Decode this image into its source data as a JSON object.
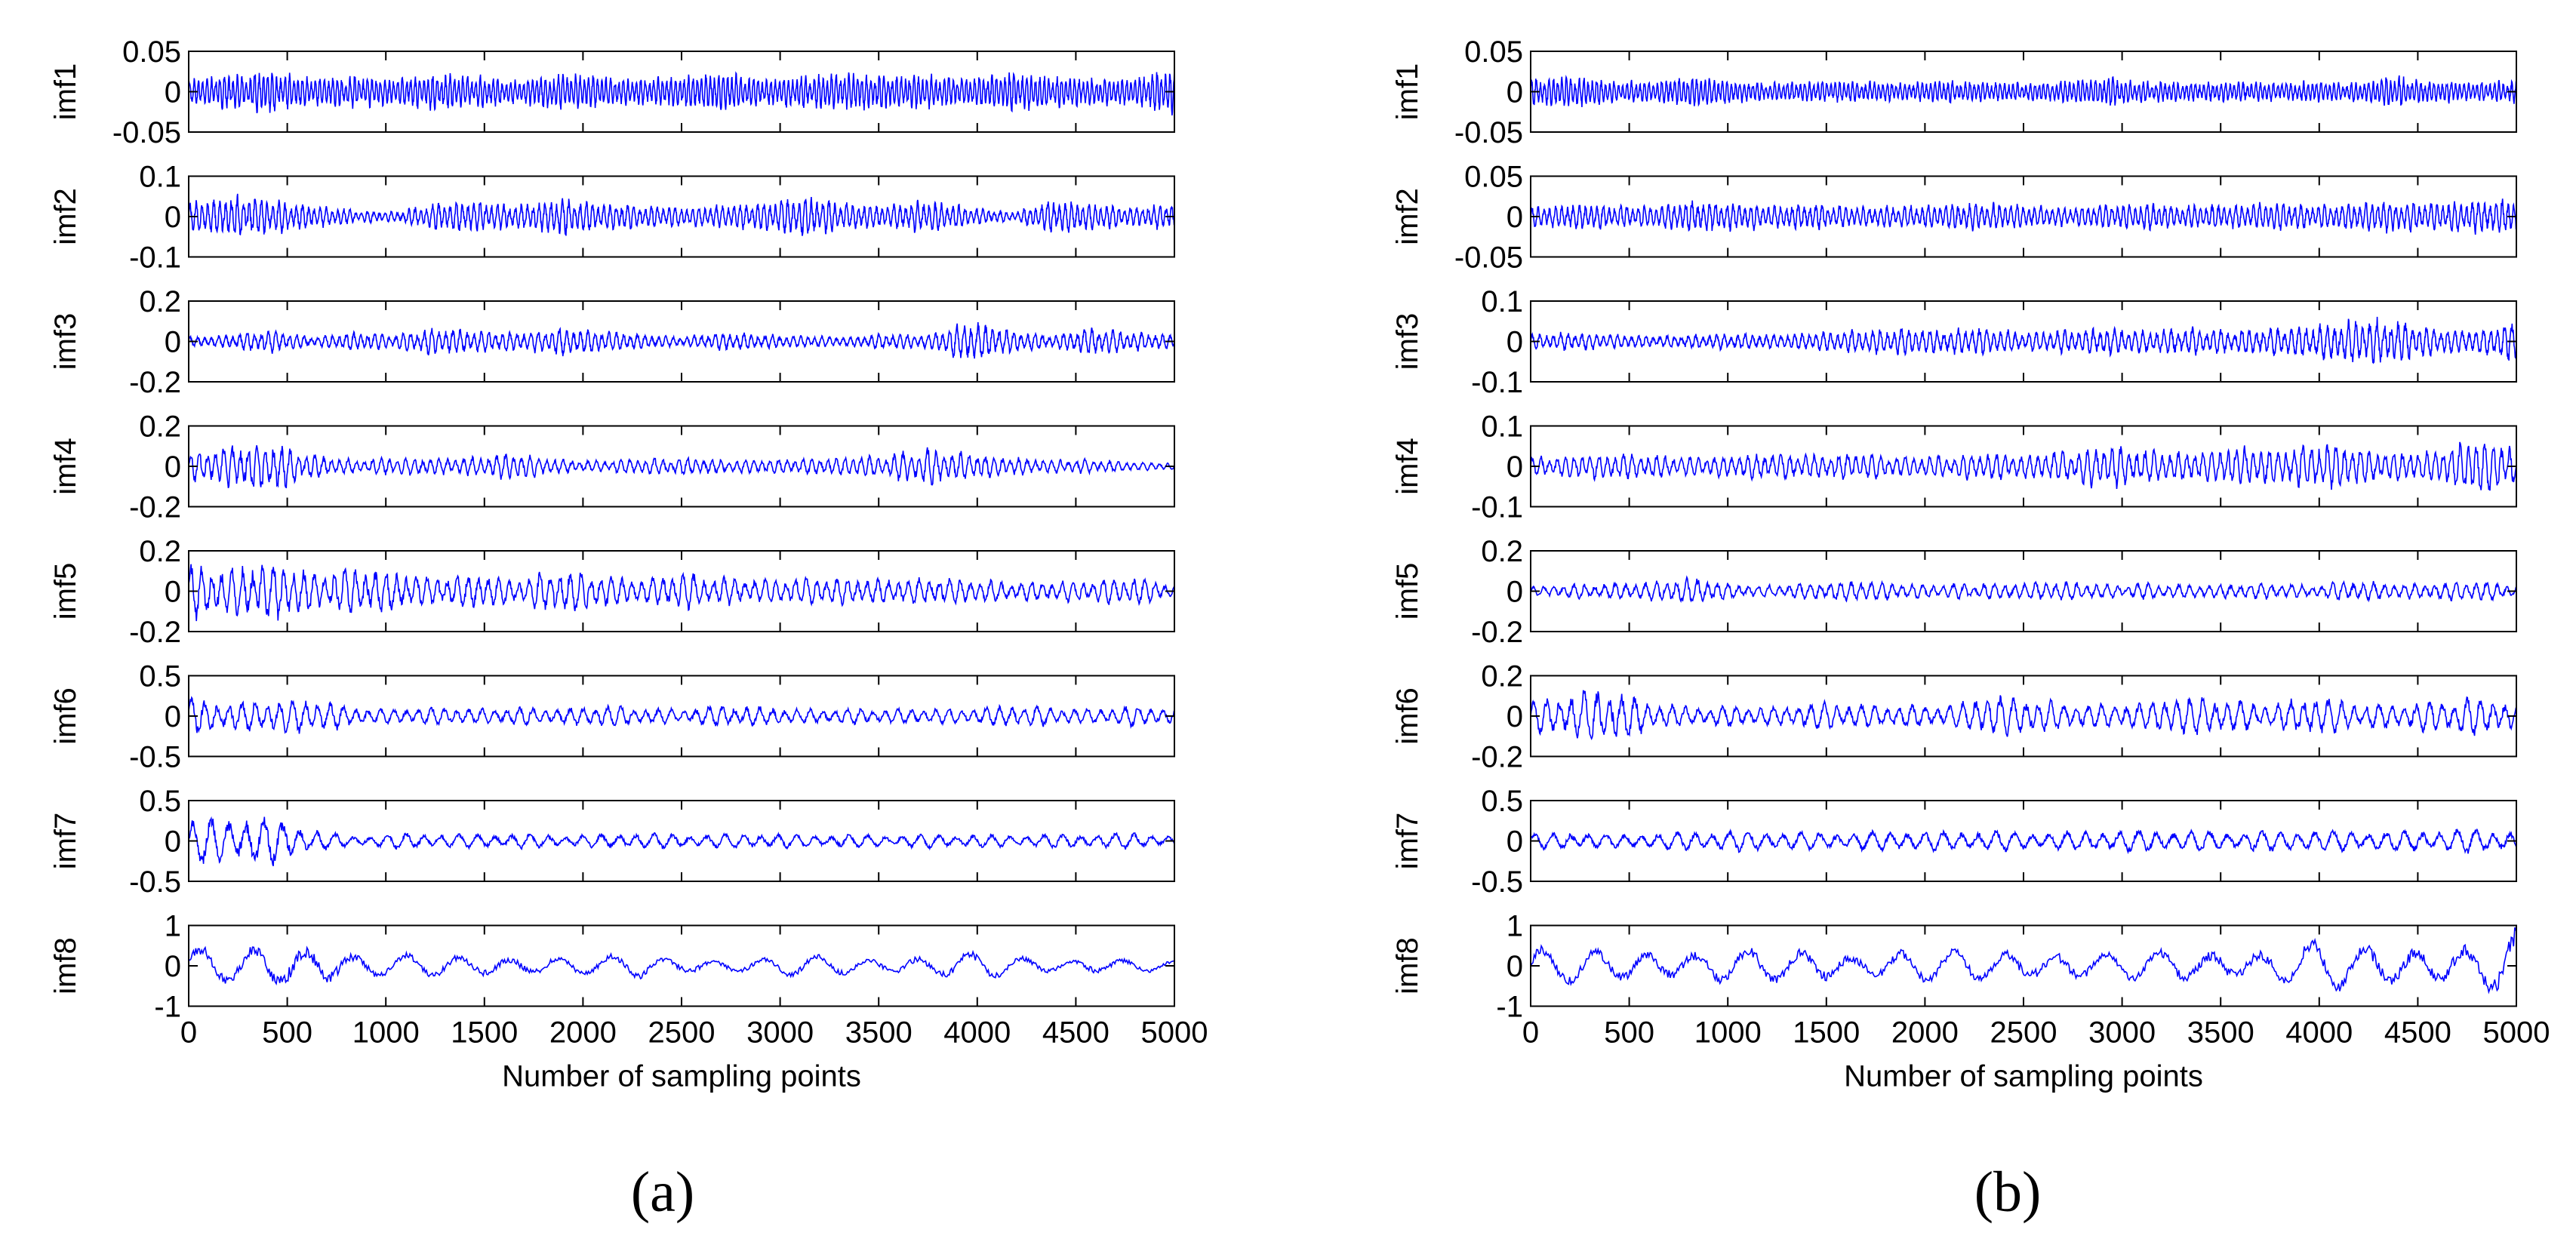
{
  "figure": {
    "panel_labels": [
      "(a)",
      "(b)"
    ]
  },
  "chart_data": [
    {
      "type": "line",
      "panel": "(a)",
      "xlabel": "Number of sampling points",
      "xlim": [
        0,
        5000
      ],
      "xticks": [
        0,
        500,
        1000,
        1500,
        2000,
        2500,
        3000,
        3500,
        4000,
        4500,
        5000
      ],
      "line_color": "#0000ff",
      "series": [
        {
          "name": "imf1",
          "ylim": [
            -0.05,
            0.05
          ],
          "yticks": [
            "0.05",
            "0",
            "-0.05"
          ],
          "amplitude": 0.025,
          "period": 22,
          "envelope": [
            0.55,
            0.8,
            0.9,
            0.6,
            0.7,
            0.6,
            0.8,
            0.7,
            0.5,
            0.8,
            0.7,
            0.55,
            0.7,
            0.85,
            0.6,
            0.7,
            0.8,
            0.75,
            0.7,
            0.6,
            0.85,
            0.7,
            0.6,
            0.55,
            1.1
          ]
        },
        {
          "name": "imf2",
          "ylim": [
            -0.1,
            0.1
          ],
          "yticks": [
            "0.1",
            "0",
            "-0.1"
          ],
          "amplitude": 0.05,
          "period": 30,
          "envelope": [
            0.6,
            0.9,
            0.8,
            0.5,
            0.3,
            0.2,
            0.6,
            0.7,
            0.5,
            0.8,
            0.6,
            0.5,
            0.4,
            0.5,
            0.6,
            0.9,
            0.6,
            0.5,
            0.7,
            0.4,
            0.2,
            0.7,
            0.6,
            0.4,
            0.6
          ]
        },
        {
          "name": "imf3",
          "ylim": [
            -0.2,
            0.2
          ],
          "yticks": [
            "0.2",
            "0",
            "-0.2"
          ],
          "amplitude": 0.1,
          "period": 36,
          "envelope": [
            0.2,
            0.3,
            0.5,
            0.2,
            0.4,
            0.3,
            0.6,
            0.5,
            0.4,
            0.6,
            0.5,
            0.3,
            0.2,
            0.4,
            0.3,
            0.25,
            0.2,
            0.35,
            0.3,
            0.9,
            0.5,
            0.3,
            0.6,
            0.4,
            0.3
          ]
        },
        {
          "name": "imf4",
          "ylim": [
            -0.2,
            0.2
          ],
          "yticks": [
            "0.2",
            "0",
            "-0.2"
          ],
          "amplitude": 0.1,
          "period": 42,
          "envelope": [
            0.6,
            0.9,
            1.1,
            0.5,
            0.3,
            0.4,
            0.35,
            0.4,
            0.6,
            0.3,
            0.25,
            0.35,
            0.4,
            0.3,
            0.3,
            0.35,
            0.4,
            0.5,
            0.8,
            0.6,
            0.4,
            0.3,
            0.3,
            0.2,
            0.15
          ]
        },
        {
          "name": "imf5",
          "ylim": [
            -0.2,
            0.2
          ],
          "yticks": [
            "0.2",
            "0",
            "-0.2"
          ],
          "amplitude": 0.1,
          "period": 52,
          "envelope": [
            1.2,
            1.0,
            1.4,
            0.8,
            1.0,
            0.9,
            0.6,
            0.8,
            0.5,
            1.0,
            0.7,
            0.5,
            0.8,
            0.6,
            0.5,
            0.6,
            0.55,
            0.5,
            0.6,
            0.5,
            0.4,
            0.45,
            0.5,
            0.6,
            0.3
          ]
        },
        {
          "name": "imf6",
          "ylim": [
            -0.5,
            0.5
          ],
          "yticks": [
            "0.5",
            "0",
            "-0.5"
          ],
          "amplitude": 0.25,
          "period": 64,
          "envelope": [
            0.8,
            0.6,
            0.7,
            0.8,
            0.4,
            0.3,
            0.4,
            0.3,
            0.4,
            0.3,
            0.5,
            0.35,
            0.3,
            0.5,
            0.4,
            0.3,
            0.35,
            0.3,
            0.35,
            0.3,
            0.5,
            0.4,
            0.3,
            0.45,
            0.3
          ]
        },
        {
          "name": "imf7",
          "ylim": [
            -0.5,
            0.5
          ],
          "yticks": [
            "0.5",
            "0",
            "-0.5"
          ],
          "amplitude": 0.25,
          "period": 90,
          "envelope": [
            0.9,
            1.1,
            1.0,
            0.5,
            0.2,
            0.35,
            0.3,
            0.3,
            0.35,
            0.25,
            0.3,
            0.35,
            0.3,
            0.3,
            0.35,
            0.25,
            0.3,
            0.25,
            0.3,
            0.3,
            0.25,
            0.3,
            0.3,
            0.35,
            0.2
          ]
        },
        {
          "name": "imf8",
          "ylim": [
            -1,
            1
          ],
          "yticks": [
            "1",
            "0",
            "-1"
          ],
          "amplitude": 0.3,
          "period": 260,
          "envelope": [
            1.6,
            1.1,
            1.6,
            1.9,
            1.0,
            0.9,
            0.8,
            0.9,
            0.8,
            0.7,
            0.7,
            0.9,
            0.7,
            0.6,
            0.6,
            0.8,
            0.7,
            0.7,
            0.8,
            1.0,
            0.7,
            0.6,
            0.7,
            0.5,
            0.4
          ]
        }
      ]
    },
    {
      "type": "line",
      "panel": "(b)",
      "xlabel": "Number of sampling points",
      "xlim": [
        0,
        5000
      ],
      "xticks": [
        0,
        500,
        1000,
        1500,
        2000,
        2500,
        3000,
        3500,
        4000,
        4500,
        5000
      ],
      "line_color": "#0000ff",
      "series": [
        {
          "name": "imf1",
          "ylim": [
            -0.05,
            0.05
          ],
          "yticks": [
            "0.05",
            "0",
            "-0.05"
          ],
          "amplitude": 0.02,
          "period": 22,
          "envelope": [
            0.7,
            0.9,
            0.6,
            0.6,
            0.9,
            0.6,
            0.5,
            0.55,
            0.6,
            0.5,
            0.6,
            0.55,
            0.5,
            0.6,
            0.8,
            0.6,
            0.5,
            0.55,
            0.5,
            0.6,
            0.5,
            0.9,
            0.6,
            0.55,
            0.6
          ]
        },
        {
          "name": "imf2",
          "ylim": [
            -0.05,
            0.05
          ],
          "yticks": [
            "0.05",
            "0",
            "-0.05"
          ],
          "amplitude": 0.025,
          "period": 30,
          "envelope": [
            0.4,
            0.6,
            0.5,
            0.5,
            0.7,
            0.6,
            0.5,
            0.6,
            0.4,
            0.5,
            0.5,
            0.6,
            0.5,
            0.4,
            0.5,
            0.6,
            0.5,
            0.5,
            0.6,
            0.5,
            0.6,
            0.7,
            0.6,
            0.7,
            0.8
          ]
        },
        {
          "name": "imf3",
          "ylim": [
            -0.1,
            0.1
          ],
          "yticks": [
            "0.1",
            "0",
            "-0.1"
          ],
          "amplitude": 0.05,
          "period": 36,
          "envelope": [
            0.3,
            0.4,
            0.3,
            0.25,
            0.3,
            0.35,
            0.3,
            0.4,
            0.5,
            0.6,
            0.5,
            0.6,
            0.4,
            0.5,
            0.6,
            0.5,
            0.6,
            0.5,
            0.6,
            0.7,
            0.9,
            1.0,
            0.6,
            0.5,
            0.9
          ]
        },
        {
          "name": "imf4",
          "ylim": [
            -0.1,
            0.1
          ],
          "yticks": [
            "0.1",
            "0",
            "-0.1"
          ],
          "amplitude": 0.05,
          "period": 42,
          "envelope": [
            0.4,
            0.5,
            0.6,
            0.5,
            0.4,
            0.5,
            0.6,
            0.5,
            0.6,
            0.4,
            0.5,
            0.6,
            0.5,
            0.7,
            1.0,
            0.7,
            0.6,
            0.9,
            0.8,
            1.0,
            0.9,
            0.6,
            0.7,
            1.3,
            0.9
          ]
        },
        {
          "name": "imf5",
          "ylim": [
            -0.2,
            0.2
          ],
          "yticks": [
            "0.2",
            "0",
            "-0.2"
          ],
          "amplitude": 0.1,
          "period": 52,
          "envelope": [
            0.2,
            0.3,
            0.35,
            0.4,
            0.6,
            0.3,
            0.25,
            0.4,
            0.45,
            0.35,
            0.3,
            0.35,
            0.4,
            0.45,
            0.3,
            0.35,
            0.3,
            0.3,
            0.35,
            0.25,
            0.5,
            0.3,
            0.35,
            0.45,
            0.3
          ]
        },
        {
          "name": "imf6",
          "ylim": [
            -0.2,
            0.2
          ],
          "yticks": [
            "0.2",
            "0",
            "-0.2"
          ],
          "amplitude": 0.1,
          "period": 64,
          "envelope": [
            0.6,
            1.0,
            1.2,
            0.6,
            0.4,
            0.5,
            0.4,
            0.6,
            0.5,
            0.5,
            0.4,
            0.9,
            0.8,
            0.6,
            0.5,
            0.6,
            0.9,
            0.7,
            0.5,
            0.9,
            0.6,
            0.5,
            0.7,
            0.9,
            0.5
          ]
        },
        {
          "name": "imf7",
          "ylim": [
            -0.5,
            0.5
          ],
          "yticks": [
            "0.5",
            "0",
            "-0.5"
          ],
          "amplitude": 0.25,
          "period": 90,
          "envelope": [
            0.3,
            0.4,
            0.3,
            0.35,
            0.4,
            0.45,
            0.4,
            0.35,
            0.4,
            0.45,
            0.4,
            0.45,
            0.4,
            0.4,
            0.45,
            0.5,
            0.45,
            0.4,
            0.45,
            0.5,
            0.45,
            0.4,
            0.5,
            0.55,
            0.45
          ]
        },
        {
          "name": "imf8",
          "ylim": [
            -1,
            1
          ],
          "yticks": [
            "1",
            "0",
            "-1"
          ],
          "amplitude": 0.3,
          "period": 260,
          "envelope": [
            1.4,
            1.2,
            1.1,
            1.3,
            1.2,
            1.3,
            1.2,
            1.3,
            1.0,
            1.2,
            1.1,
            1.2,
            1.3,
            1.2,
            1.0,
            1.1,
            1.2,
            1.3,
            1.4,
            1.8,
            1.6,
            1.5,
            1.7,
            1.6,
            2.6
          ]
        }
      ]
    }
  ]
}
